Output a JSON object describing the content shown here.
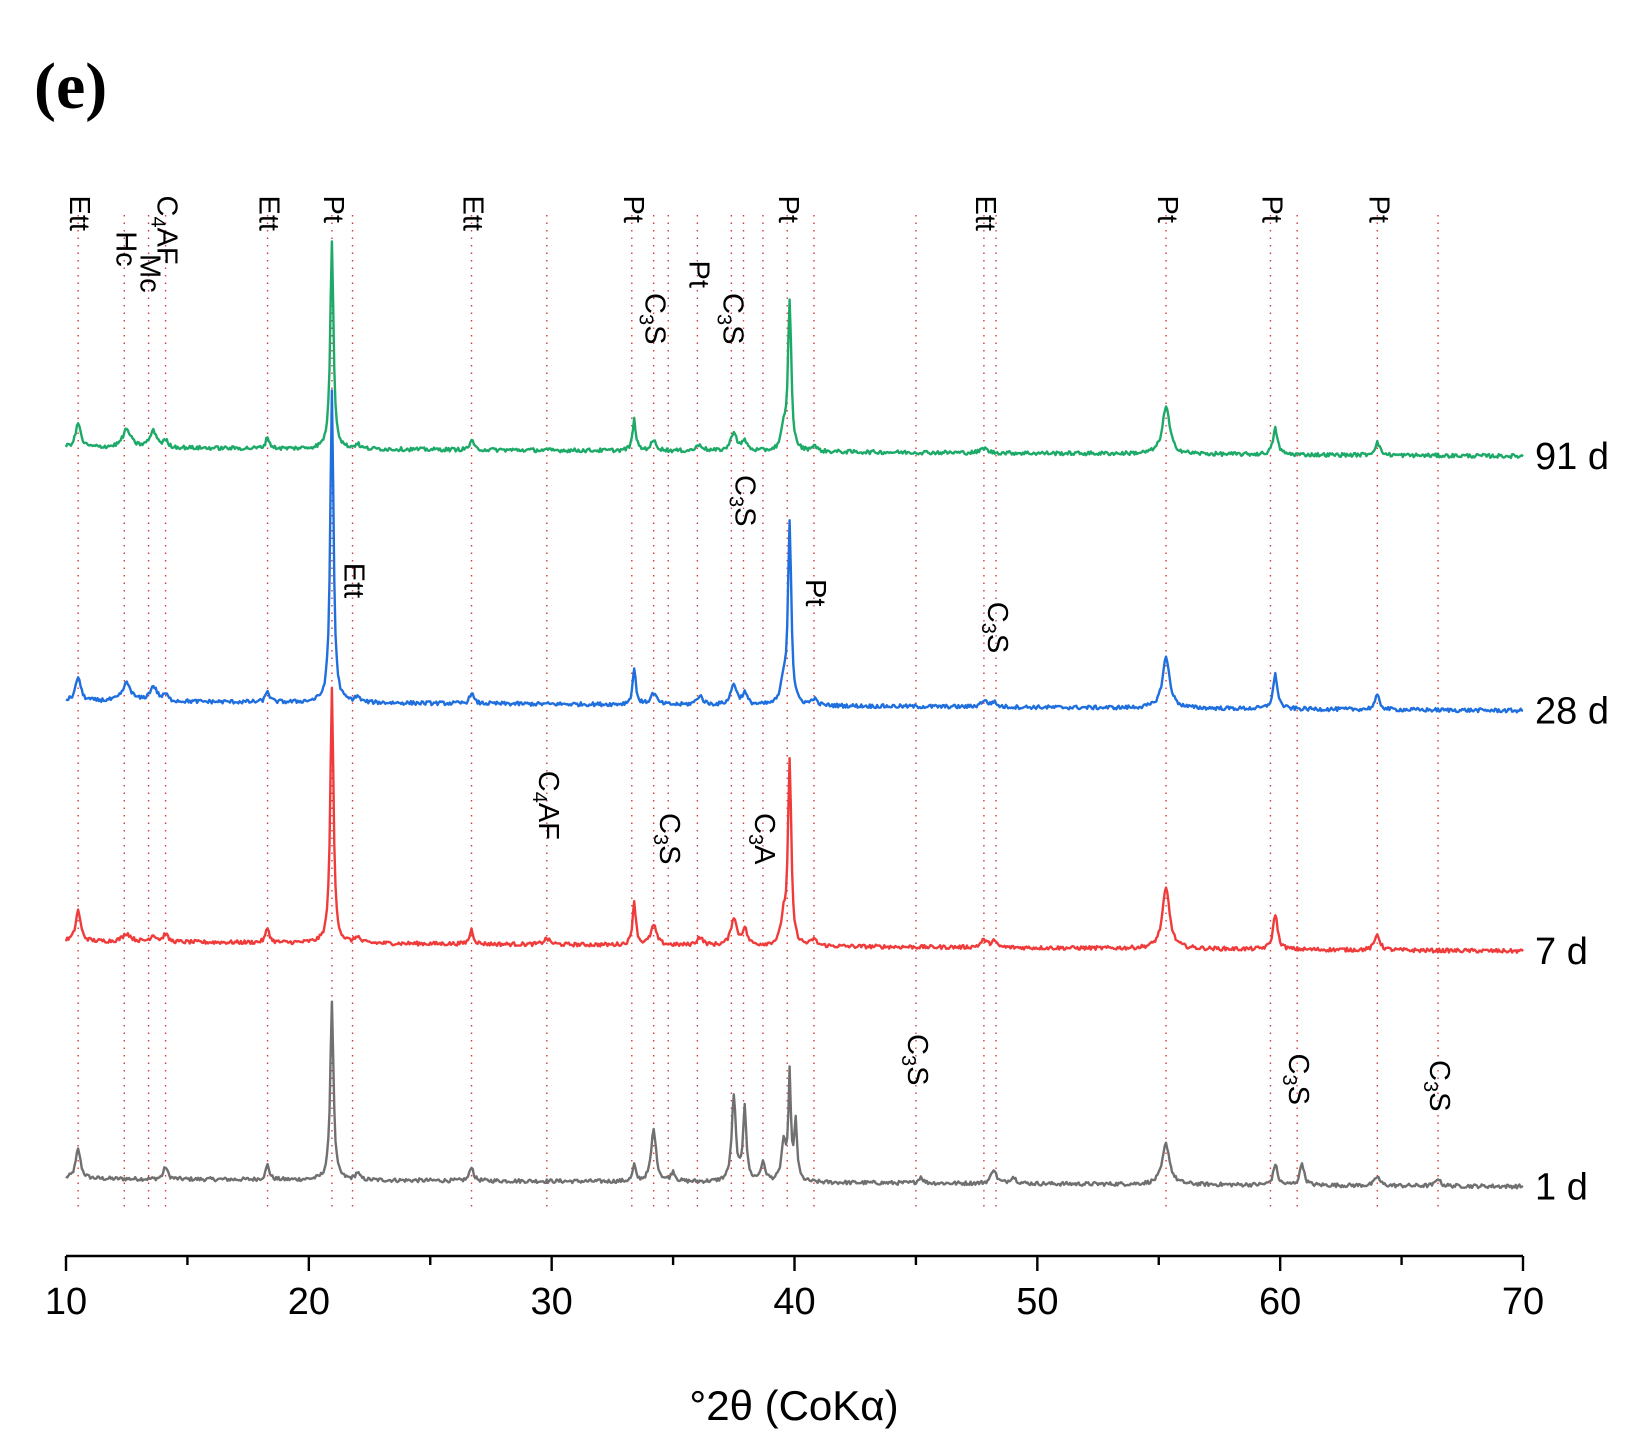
{
  "panel_label": "(e)",
  "colors": {
    "axis": "#000000",
    "reference_line": "#d23a3a",
    "series_1d": "#707070",
    "series_7d": "#f03b3b",
    "series_28d": "#1f6fde",
    "series_91d": "#1daa68"
  },
  "chart_data": {
    "type": "line",
    "title": "",
    "xlabel": "°2θ (CoKα)",
    "ylabel": "",
    "xlim": [
      10,
      70
    ],
    "xticks": [
      "10",
      "20",
      "30",
      "40",
      "50",
      "60",
      "70"
    ],
    "y_units": "arbitrary intensity (stacked, offset traces)",
    "series": [
      {
        "name": "1 d",
        "color": "#707070",
        "baseline": 0,
        "slope": -0.08,
        "peaks": [
          {
            "x": 10.5,
            "h": 0.9,
            "w": 0.12
          },
          {
            "x": 14.1,
            "h": 0.38,
            "w": 0.1
          },
          {
            "x": 18.3,
            "h": 0.45,
            "w": 0.09
          },
          {
            "x": 20.95,
            "h": 5.5,
            "w": 0.08
          },
          {
            "x": 22.0,
            "h": 0.22,
            "w": 0.1
          },
          {
            "x": 26.7,
            "h": 0.45,
            "w": 0.09
          },
          {
            "x": 33.4,
            "h": 0.5,
            "w": 0.07
          },
          {
            "x": 34.2,
            "h": 1.6,
            "w": 0.12
          },
          {
            "x": 35.0,
            "h": 0.3,
            "w": 0.1
          },
          {
            "x": 37.5,
            "h": 2.6,
            "w": 0.1
          },
          {
            "x": 37.95,
            "h": 2.3,
            "w": 0.08
          },
          {
            "x": 38.7,
            "h": 0.55,
            "w": 0.12
          },
          {
            "x": 39.55,
            "h": 1.2,
            "w": 0.1
          },
          {
            "x": 39.8,
            "h": 3.2,
            "w": 0.06
          },
          {
            "x": 40.05,
            "h": 1.8,
            "w": 0.07
          },
          {
            "x": 45.2,
            "h": 0.2,
            "w": 0.1
          },
          {
            "x": 48.2,
            "h": 0.45,
            "w": 0.12
          },
          {
            "x": 49.0,
            "h": 0.2,
            "w": 0.15
          },
          {
            "x": 55.3,
            "h": 1.25,
            "w": 0.18
          },
          {
            "x": 59.8,
            "h": 0.65,
            "w": 0.1
          },
          {
            "x": 60.9,
            "h": 0.7,
            "w": 0.1
          },
          {
            "x": 64.0,
            "h": 0.28,
            "w": 0.12
          },
          {
            "x": 66.5,
            "h": 0.25,
            "w": 0.1
          }
        ]
      },
      {
        "name": "7 d",
        "color": "#f03b3b",
        "baseline": 7.3,
        "slope": -0.1,
        "peaks": [
          {
            "x": 10.5,
            "h": 0.95,
            "w": 0.12
          },
          {
            "x": 12.5,
            "h": 0.25,
            "w": 0.2
          },
          {
            "x": 13.6,
            "h": 0.2,
            "w": 0.15
          },
          {
            "x": 14.1,
            "h": 0.25,
            "w": 0.1
          },
          {
            "x": 18.3,
            "h": 0.45,
            "w": 0.09
          },
          {
            "x": 20.95,
            "h": 7.8,
            "w": 0.08
          },
          {
            "x": 22.0,
            "h": 0.2,
            "w": 0.1
          },
          {
            "x": 26.7,
            "h": 0.45,
            "w": 0.09
          },
          {
            "x": 29.8,
            "h": 0.18,
            "w": 0.15
          },
          {
            "x": 33.4,
            "h": 1.35,
            "w": 0.08
          },
          {
            "x": 34.2,
            "h": 0.6,
            "w": 0.14
          },
          {
            "x": 36.1,
            "h": 0.25,
            "w": 0.15
          },
          {
            "x": 37.5,
            "h": 0.85,
            "w": 0.14
          },
          {
            "x": 37.95,
            "h": 0.5,
            "w": 0.12
          },
          {
            "x": 39.55,
            "h": 0.8,
            "w": 0.12
          },
          {
            "x": 39.8,
            "h": 5.6,
            "w": 0.08
          },
          {
            "x": 40.8,
            "h": 0.2,
            "w": 0.12
          },
          {
            "x": 47.8,
            "h": 0.22,
            "w": 0.15
          },
          {
            "x": 48.2,
            "h": 0.2,
            "w": 0.12
          },
          {
            "x": 55.3,
            "h": 1.85,
            "w": 0.18
          },
          {
            "x": 59.8,
            "h": 1.1,
            "w": 0.11
          },
          {
            "x": 64.0,
            "h": 0.5,
            "w": 0.12
          }
        ]
      },
      {
        "name": "28 d",
        "color": "#1f6fde",
        "baseline": 14.7,
        "slope": -0.1,
        "peaks": [
          {
            "x": 10.5,
            "h": 0.75,
            "w": 0.12
          },
          {
            "x": 12.5,
            "h": 0.55,
            "w": 0.2
          },
          {
            "x": 13.6,
            "h": 0.45,
            "w": 0.18
          },
          {
            "x": 14.1,
            "h": 0.2,
            "w": 0.1
          },
          {
            "x": 18.3,
            "h": 0.35,
            "w": 0.09
          },
          {
            "x": 20.95,
            "h": 9.6,
            "w": 0.08
          },
          {
            "x": 22.0,
            "h": 0.18,
            "w": 0.1
          },
          {
            "x": 26.7,
            "h": 0.35,
            "w": 0.09
          },
          {
            "x": 33.4,
            "h": 1.1,
            "w": 0.08
          },
          {
            "x": 34.2,
            "h": 0.35,
            "w": 0.14
          },
          {
            "x": 36.1,
            "h": 0.28,
            "w": 0.15
          },
          {
            "x": 37.5,
            "h": 0.65,
            "w": 0.14
          },
          {
            "x": 37.95,
            "h": 0.35,
            "w": 0.12
          },
          {
            "x": 39.55,
            "h": 0.7,
            "w": 0.12
          },
          {
            "x": 39.8,
            "h": 5.6,
            "w": 0.08
          },
          {
            "x": 40.8,
            "h": 0.2,
            "w": 0.12
          },
          {
            "x": 47.8,
            "h": 0.2,
            "w": 0.15
          },
          {
            "x": 48.2,
            "h": 0.15,
            "w": 0.12
          },
          {
            "x": 55.3,
            "h": 1.55,
            "w": 0.18
          },
          {
            "x": 59.8,
            "h": 1.05,
            "w": 0.11
          },
          {
            "x": 64.0,
            "h": 0.42,
            "w": 0.12
          }
        ]
      },
      {
        "name": "91 d",
        "color": "#1daa68",
        "baseline": 22.5,
        "slope": -0.09,
        "peaks": [
          {
            "x": 10.5,
            "h": 0.75,
            "w": 0.12
          },
          {
            "x": 12.5,
            "h": 0.55,
            "w": 0.2
          },
          {
            "x": 13.6,
            "h": 0.5,
            "w": 0.18
          },
          {
            "x": 14.1,
            "h": 0.2,
            "w": 0.1
          },
          {
            "x": 18.3,
            "h": 0.35,
            "w": 0.09
          },
          {
            "x": 20.95,
            "h": 6.4,
            "w": 0.08
          },
          {
            "x": 22.0,
            "h": 0.15,
            "w": 0.1
          },
          {
            "x": 26.7,
            "h": 0.3,
            "w": 0.09
          },
          {
            "x": 33.4,
            "h": 0.95,
            "w": 0.08
          },
          {
            "x": 34.2,
            "h": 0.3,
            "w": 0.14
          },
          {
            "x": 36.1,
            "h": 0.2,
            "w": 0.15
          },
          {
            "x": 37.5,
            "h": 0.6,
            "w": 0.14
          },
          {
            "x": 37.95,
            "h": 0.3,
            "w": 0.12
          },
          {
            "x": 39.55,
            "h": 0.6,
            "w": 0.12
          },
          {
            "x": 39.8,
            "h": 4.6,
            "w": 0.08
          },
          {
            "x": 40.8,
            "h": 0.18,
            "w": 0.12
          },
          {
            "x": 47.8,
            "h": 0.15,
            "w": 0.15
          },
          {
            "x": 55.3,
            "h": 1.45,
            "w": 0.18
          },
          {
            "x": 59.8,
            "h": 0.8,
            "w": 0.11
          },
          {
            "x": 64.0,
            "h": 0.4,
            "w": 0.12
          }
        ]
      }
    ],
    "reference_lines": [
      10.5,
      12.4,
      13.4,
      14.1,
      18.3,
      20.95,
      21.8,
      26.7,
      29.8,
      33.3,
      34.2,
      34.8,
      36.0,
      37.4,
      37.9,
      38.7,
      39.7,
      40.8,
      45.0,
      47.8,
      48.3,
      55.3,
      59.6,
      60.7,
      64.0,
      66.5
    ],
    "peak_labels": [
      {
        "main": "Ett",
        "sub": "",
        "rest": "",
        "x": 10.5,
        "y": 30.6
      },
      {
        "main": "Hc",
        "sub": "",
        "rest": "",
        "x": 12.4,
        "y": 29.5
      },
      {
        "main": "Mc",
        "sub": "",
        "rest": "",
        "x": 13.4,
        "y": 28.8
      },
      {
        "main": "C",
        "sub": "4",
        "rest": "AF",
        "x": 14.1,
        "y": 30.6
      },
      {
        "main": "Ett",
        "sub": "",
        "rest": "",
        "x": 18.3,
        "y": 30.6
      },
      {
        "main": "Pt",
        "sub": "",
        "rest": "",
        "x": 20.95,
        "y": 30.6
      },
      {
        "main": "Ett",
        "sub": "",
        "rest": "",
        "x": 26.7,
        "y": 30.6
      },
      {
        "main": "Pt",
        "sub": "",
        "rest": "",
        "x": 33.3,
        "y": 30.6
      },
      {
        "main": "Pt",
        "sub": "",
        "rest": "",
        "x": 36.0,
        "y": 28.6
      },
      {
        "main": "C",
        "sub": "3",
        "rest": "S",
        "x": 34.2,
        "y": 27.6
      },
      {
        "main": "C",
        "sub": "3",
        "rest": "S",
        "x": 37.4,
        "y": 27.6
      },
      {
        "main": "Pt",
        "sub": "",
        "rest": "",
        "x": 39.7,
        "y": 30.6
      },
      {
        "main": "Ett",
        "sub": "",
        "rest": "",
        "x": 47.8,
        "y": 30.6
      },
      {
        "main": "Pt",
        "sub": "",
        "rest": "",
        "x": 55.3,
        "y": 30.6
      },
      {
        "main": "Pt",
        "sub": "",
        "rest": "",
        "x": 59.6,
        "y": 30.6
      },
      {
        "main": "Pt",
        "sub": "",
        "rest": "",
        "x": 64.0,
        "y": 30.6
      },
      {
        "main": "C",
        "sub": "3",
        "rest": "S",
        "x": 37.9,
        "y": 22.0
      },
      {
        "main": "Ett",
        "sub": "",
        "rest": "",
        "x": 21.8,
        "y": 19.3
      },
      {
        "main": "Pt",
        "sub": "",
        "rest": "",
        "x": 40.8,
        "y": 18.8
      },
      {
        "main": "C",
        "sub": "3",
        "rest": "S",
        "x": 48.3,
        "y": 18.1
      },
      {
        "main": "C",
        "sub": "4",
        "rest": "AF",
        "x": 29.8,
        "y": 12.9
      },
      {
        "main": "C",
        "sub": "3",
        "rest": "S",
        "x": 34.8,
        "y": 11.6
      },
      {
        "main": "C",
        "sub": "3",
        "rest": "A",
        "x": 38.7,
        "y": 11.6
      },
      {
        "main": "C",
        "sub": "3",
        "rest": "S",
        "x": 45.0,
        "y": 4.8
      },
      {
        "main": "C",
        "sub": "3",
        "rest": "S",
        "x": 60.7,
        "y": 4.2
      },
      {
        "main": "C",
        "sub": "3",
        "rest": "S",
        "x": 66.5,
        "y": 4.0
      }
    ]
  }
}
